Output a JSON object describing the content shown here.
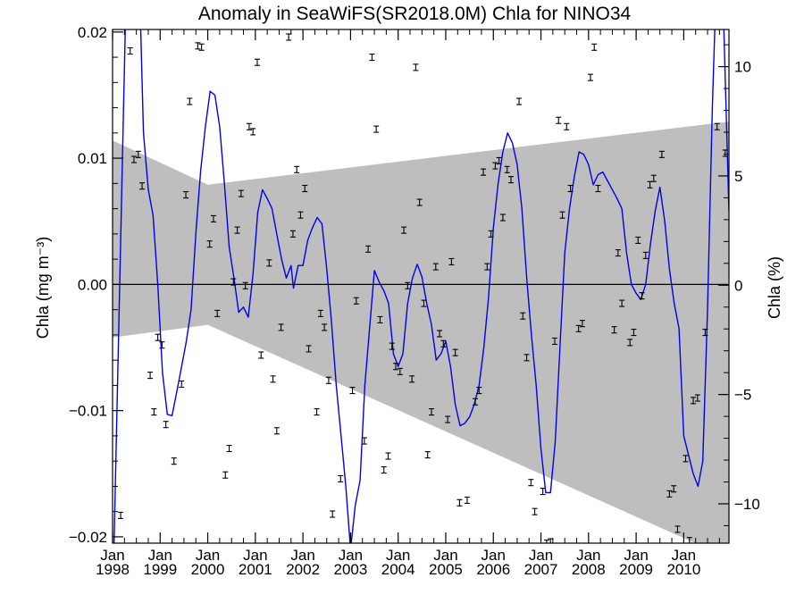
{
  "chart_data": {
    "type": "line",
    "title": "Anomaly in SeaWiFS(SR2018.0M) Chla for NINO34",
    "ylabel_left": "Chla (mg m⁻³)",
    "ylabel_right": "Chla (%)",
    "xlim": [
      1998.0,
      2010.95
    ],
    "ylim_left": [
      -0.0205,
      0.0202
    ],
    "ylim_right": [
      -11.8,
      11.7
    ],
    "grid": false,
    "left_ticks": [
      {
        "value": 0.02,
        "label": "0.02"
      },
      {
        "value": 0.01,
        "label": "0.01"
      },
      {
        "value": 0.0,
        "label": "0.00"
      },
      {
        "value": -0.01,
        "label": "−0.01"
      },
      {
        "value": -0.02,
        "label": "−0.02"
      }
    ],
    "right_ticks": [
      {
        "value": 10,
        "label": "10"
      },
      {
        "value": 5,
        "label": "5"
      },
      {
        "value": 0,
        "label": "0"
      },
      {
        "value": -5,
        "label": "−5"
      },
      {
        "value": -10,
        "label": "−10"
      }
    ],
    "x_ticks": [
      {
        "value": 1998.0,
        "month": "Jan",
        "year": "1998"
      },
      {
        "value": 1999.0,
        "month": "Jan",
        "year": "1999"
      },
      {
        "value": 2000.0,
        "month": "Jan",
        "year": "2000"
      },
      {
        "value": 2001.0,
        "month": "Jan",
        "year": "2001"
      },
      {
        "value": 2002.0,
        "month": "Jan",
        "year": "2002"
      },
      {
        "value": 2003.0,
        "month": "Jan",
        "year": "2003"
      },
      {
        "value": 2004.0,
        "month": "Jan",
        "year": "2004"
      },
      {
        "value": 2005.0,
        "month": "Jan",
        "year": "2005"
      },
      {
        "value": 2006.0,
        "month": "Jan",
        "year": "2006"
      },
      {
        "value": 2007.0,
        "month": "Jan",
        "year": "2007"
      },
      {
        "value": 2008.0,
        "month": "Jan",
        "year": "2008"
      },
      {
        "value": 2009.0,
        "month": "Jan",
        "year": "2009"
      },
      {
        "value": 2010.0,
        "month": "Jan",
        "year": "2010"
      }
    ],
    "uncertainty_band": {
      "color": "#bebebe",
      "upper": [
        [
          1998.0,
          0.0114
        ],
        [
          2000.0,
          0.0079
        ],
        [
          2010.95,
          0.0129
        ]
      ],
      "lower": [
        [
          1998.0,
          -0.0042
        ],
        [
          2000.0,
          -0.0032
        ],
        [
          2010.95,
          -0.0217
        ]
      ]
    },
    "smoothed_series": {
      "name": "",
      "color": "#0000ee",
      "points": [
        [
          1998.0,
          -0.026
        ],
        [
          1998.15,
          0.0
        ],
        [
          1998.3,
          0.026
        ],
        [
          1998.55,
          0.026
        ],
        [
          1998.65,
          0.012
        ],
        [
          1998.75,
          0.0075
        ],
        [
          1998.85,
          0.0055
        ],
        [
          1998.95,
          0.0
        ],
        [
          1999.05,
          -0.007
        ],
        [
          1999.15,
          -0.0103
        ],
        [
          1999.25,
          -0.0104
        ],
        [
          1999.35,
          -0.0085
        ],
        [
          1999.45,
          -0.0065
        ],
        [
          1999.55,
          -0.0045
        ],
        [
          1999.65,
          -0.002
        ],
        [
          1999.75,
          0.004
        ],
        [
          1999.85,
          0.009
        ],
        [
          1999.95,
          0.0125
        ],
        [
          2000.05,
          0.0153
        ],
        [
          2000.15,
          0.015
        ],
        [
          2000.25,
          0.0125
        ],
        [
          2000.35,
          0.008
        ],
        [
          2000.45,
          0.003
        ],
        [
          2000.55,
          0.0005
        ],
        [
          2000.65,
          -0.0022
        ],
        [
          2000.75,
          -0.0018
        ],
        [
          2000.85,
          -0.0026
        ],
        [
          2000.95,
          0.0008
        ],
        [
          2001.05,
          0.0057
        ],
        [
          2001.15,
          0.0075
        ],
        [
          2001.25,
          0.0068
        ],
        [
          2001.35,
          0.006
        ],
        [
          2001.45,
          0.004
        ],
        [
          2001.55,
          0.002
        ],
        [
          2001.65,
          0.0005
        ],
        [
          2001.75,
          0.0015
        ],
        [
          2001.8,
          -0.0003
        ],
        [
          2001.9,
          0.0015
        ],
        [
          2002.0,
          0.0015
        ],
        [
          2002.1,
          0.0035
        ],
        [
          2002.2,
          0.0045
        ],
        [
          2002.3,
          0.0053
        ],
        [
          2002.4,
          0.0048
        ],
        [
          2002.5,
          0.0012
        ],
        [
          2002.6,
          -0.003
        ],
        [
          2002.7,
          -0.008
        ],
        [
          2002.8,
          -0.012
        ],
        [
          2002.9,
          -0.016
        ],
        [
          2003.0,
          -0.021
        ],
        [
          2003.1,
          -0.0175
        ],
        [
          2003.2,
          -0.0155
        ],
        [
          2003.3,
          -0.008
        ],
        [
          2003.4,
          -0.0035
        ],
        [
          2003.5,
          0.0011
        ],
        [
          2003.6,
          0.0002
        ],
        [
          2003.7,
          -0.0005
        ],
        [
          2003.8,
          -0.0015
        ],
        [
          2003.9,
          -0.0055
        ],
        [
          2004.0,
          -0.0065
        ],
        [
          2004.1,
          -0.0055
        ],
        [
          2004.2,
          -0.0015
        ],
        [
          2004.3,
          0.0005
        ],
        [
          2004.4,
          0.0016
        ],
        [
          2004.5,
          0.0006
        ],
        [
          2004.6,
          -0.0015
        ],
        [
          2004.7,
          -0.0032
        ],
        [
          2004.8,
          -0.006
        ],
        [
          2004.9,
          -0.0055
        ],
        [
          2005.0,
          -0.0045
        ],
        [
          2005.1,
          -0.0065
        ],
        [
          2005.2,
          -0.0095
        ],
        [
          2005.3,
          -0.0112
        ],
        [
          2005.4,
          -0.011
        ],
        [
          2005.5,
          -0.0105
        ],
        [
          2005.6,
          -0.0095
        ],
        [
          2005.7,
          -0.008
        ],
        [
          2005.8,
          -0.005
        ],
        [
          2005.9,
          -0.001
        ],
        [
          2006.0,
          0.0045
        ],
        [
          2006.1,
          0.008
        ],
        [
          2006.2,
          0.0105
        ],
        [
          2006.3,
          0.012
        ],
        [
          2006.4,
          0.0112
        ],
        [
          2006.5,
          0.0095
        ],
        [
          2006.6,
          0.006
        ],
        [
          2006.7,
          0.0005
        ],
        [
          2006.8,
          -0.004
        ],
        [
          2006.9,
          -0.008
        ],
        [
          2007.0,
          -0.013
        ],
        [
          2007.1,
          -0.0165
        ],
        [
          2007.2,
          -0.0165
        ],
        [
          2007.3,
          -0.0125
        ],
        [
          2007.4,
          -0.005
        ],
        [
          2007.5,
          0.0025
        ],
        [
          2007.6,
          0.006
        ],
        [
          2007.7,
          0.0085
        ],
        [
          2007.8,
          0.0105
        ],
        [
          2007.9,
          0.0103
        ],
        [
          2008.0,
          0.0095
        ],
        [
          2008.1,
          0.0079
        ],
        [
          2008.2,
          0.0087
        ],
        [
          2008.3,
          0.0089
        ],
        [
          2008.4,
          0.0082
        ],
        [
          2008.5,
          0.0075
        ],
        [
          2008.6,
          0.0068
        ],
        [
          2008.7,
          0.006
        ],
        [
          2008.8,
          0.0025
        ],
        [
          2008.9,
          0.0
        ],
        [
          2009.0,
          -0.0007
        ],
        [
          2009.1,
          -0.0012
        ],
        [
          2009.2,
          0.0
        ],
        [
          2009.3,
          0.0032
        ],
        [
          2009.4,
          0.0058
        ],
        [
          2009.5,
          0.0077
        ],
        [
          2009.6,
          0.005
        ],
        [
          2009.7,
          0.0012
        ],
        [
          2009.8,
          -0.0015
        ],
        [
          2009.9,
          -0.0035
        ],
        [
          2010.0,
          -0.012
        ],
        [
          2010.1,
          -0.0135
        ],
        [
          2010.2,
          -0.015
        ],
        [
          2010.3,
          -0.016
        ],
        [
          2010.4,
          -0.014
        ],
        [
          2010.5,
          -0.002
        ],
        [
          2010.6,
          0.014
        ],
        [
          2010.7,
          0.026
        ],
        [
          2010.8,
          0.026
        ],
        [
          2010.95,
          0.0058
        ]
      ]
    },
    "monthly_points": {
      "color": "#000000",
      "points": [
        [
          1998.17,
          -0.0183
        ],
        [
          1998.37,
          0.0185
        ],
        [
          1998.45,
          0.0099
        ],
        [
          1998.54,
          0.0103
        ],
        [
          1998.62,
          0.0078
        ],
        [
          1998.79,
          -0.0072
        ],
        [
          1998.87,
          -0.0101
        ],
        [
          1998.95,
          -0.0042
        ],
        [
          1999.04,
          -0.0048
        ],
        [
          1999.12,
          -0.0111
        ],
        [
          1999.29,
          -0.014
        ],
        [
          1999.45,
          -0.0079
        ],
        [
          1999.54,
          0.0071
        ],
        [
          1999.62,
          0.0145
        ],
        [
          1999.79,
          0.0189
        ],
        [
          1999.87,
          0.0188
        ],
        [
          2000.04,
          0.0032
        ],
        [
          2000.12,
          0.0052
        ],
        [
          2000.2,
          -0.0023
        ],
        [
          2000.37,
          -0.0151
        ],
        [
          2000.45,
          -0.013
        ],
        [
          2000.54,
          0.0002
        ],
        [
          2000.62,
          0.0043
        ],
        [
          2000.7,
          0.0072
        ],
        [
          2000.79,
          -0.0001
        ],
        [
          2000.87,
          0.0125
        ],
        [
          2000.95,
          0.0121
        ],
        [
          2001.04,
          0.0176
        ],
        [
          2001.12,
          -0.0056
        ],
        [
          2001.29,
          0.0017
        ],
        [
          2001.37,
          -0.0075
        ],
        [
          2001.45,
          -0.0116
        ],
        [
          2001.54,
          -0.0034
        ],
        [
          2001.7,
          0.0196
        ],
        [
          2001.79,
          0.004
        ],
        [
          2001.87,
          0.0091
        ],
        [
          2001.95,
          0.0055
        ],
        [
          2002.04,
          0.0076
        ],
        [
          2002.12,
          -0.0051
        ],
        [
          2002.29,
          -0.0101
        ],
        [
          2002.37,
          -0.0023
        ],
        [
          2002.45,
          -0.0034
        ],
        [
          2002.54,
          -0.0076
        ],
        [
          2002.62,
          -0.0182
        ],
        [
          2002.79,
          -0.0154
        ],
        [
          2003.04,
          -0.0084
        ],
        [
          2003.12,
          -0.0013
        ],
        [
          2003.29,
          -0.0124
        ],
        [
          2003.37,
          0.0028
        ],
        [
          2003.45,
          0.018
        ],
        [
          2003.54,
          0.0123
        ],
        [
          2003.62,
          -0.0028
        ],
        [
          2003.7,
          -0.0147
        ],
        [
          2003.79,
          -0.0136
        ],
        [
          2003.87,
          -0.0049
        ],
        [
          2003.95,
          -0.0065
        ],
        [
          2004.04,
          -0.0069
        ],
        [
          2004.12,
          0.0043
        ],
        [
          2004.2,
          -0.0001
        ],
        [
          2004.29,
          -0.0075
        ],
        [
          2004.37,
          0.0172
        ],
        [
          2004.45,
          0.0065
        ],
        [
          2004.54,
          -0.0015
        ],
        [
          2004.62,
          -0.0135
        ],
        [
          2004.7,
          -0.0101
        ],
        [
          2004.79,
          0.0014
        ],
        [
          2004.87,
          -0.0039
        ],
        [
          2004.95,
          -0.0047
        ],
        [
          2005.04,
          -0.0107
        ],
        [
          2005.12,
          0.0018
        ],
        [
          2005.2,
          -0.0054
        ],
        [
          2005.29,
          -0.0173
        ],
        [
          2005.45,
          -0.0171
        ],
        [
          2005.62,
          -0.0093
        ],
        [
          2005.7,
          -0.0084
        ],
        [
          2005.79,
          0.0089
        ],
        [
          2005.87,
          0.0014
        ],
        [
          2005.95,
          0.004
        ],
        [
          2006.04,
          0.0094
        ],
        [
          2006.12,
          0.0098
        ],
        [
          2006.2,
          0.0053
        ],
        [
          2006.29,
          0.0091
        ],
        [
          2006.37,
          0.0083
        ],
        [
          2006.54,
          0.0145
        ],
        [
          2006.62,
          -0.0025
        ],
        [
          2006.7,
          -0.0058
        ],
        [
          2006.79,
          -0.0157
        ],
        [
          2006.87,
          -0.018
        ],
        [
          2007.04,
          -0.0164
        ],
        [
          2007.12,
          -0.0205
        ],
        [
          2007.2,
          -0.0204
        ],
        [
          2007.29,
          -0.0045
        ],
        [
          2007.37,
          0.013
        ],
        [
          2007.45,
          0.0055
        ],
        [
          2007.54,
          0.0125
        ],
        [
          2007.62,
          0.0076
        ],
        [
          2007.79,
          -0.0035
        ],
        [
          2007.87,
          -0.0031
        ],
        [
          2008.04,
          0.0164
        ],
        [
          2008.12,
          0.0188
        ],
        [
          2008.2,
          0.0076
        ],
        [
          2008.54,
          -0.0036
        ],
        [
          2008.62,
          0.0025
        ],
        [
          2008.7,
          -0.0015
        ],
        [
          2008.87,
          -0.0046
        ],
        [
          2008.95,
          -0.0038
        ],
        [
          2009.04,
          0.0035
        ],
        [
          2009.12,
          -0.0009
        ],
        [
          2009.2,
          0.0023
        ],
        [
          2009.29,
          0.0079
        ],
        [
          2009.37,
          0.0084
        ],
        [
          2009.54,
          0.0103
        ],
        [
          2009.7,
          -0.0166
        ],
        [
          2009.79,
          -0.0162
        ],
        [
          2009.87,
          -0.0194
        ],
        [
          2010.04,
          -0.0138
        ],
        [
          2010.12,
          -0.0203
        ],
        [
          2010.2,
          -0.0092
        ],
        [
          2010.29,
          -0.009
        ],
        [
          2010.45,
          -0.0038
        ],
        [
          2010.7,
          0.0125
        ],
        [
          2010.87,
          0.0104
        ]
      ]
    }
  }
}
